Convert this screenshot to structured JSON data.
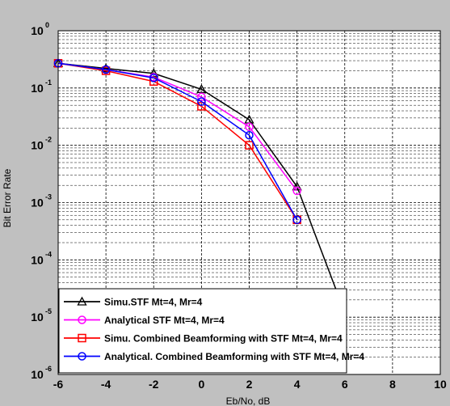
{
  "chart_data": {
    "type": "line",
    "title": "",
    "xlabel": "Eb/No, dB",
    "ylabel": "Bit Error Rate",
    "xlim": [
      -6,
      10
    ],
    "ylim": [
      1e-06,
      1
    ],
    "yscale": "log",
    "grid": true,
    "minor_grid": true,
    "legend_position": "bottom-left",
    "x_ticks": [
      "-6",
      "-4",
      "-2",
      "0",
      "2",
      "4",
      "6",
      "8",
      "10"
    ],
    "y_ticks": [
      {
        "base": "10",
        "exp": "0"
      },
      {
        "base": "10",
        "exp": "-1"
      },
      {
        "base": "10",
        "exp": "-2"
      },
      {
        "base": "10",
        "exp": "-3"
      },
      {
        "base": "10",
        "exp": "-4"
      },
      {
        "base": "10",
        "exp": "-5"
      },
      {
        "base": "10",
        "exp": "-6"
      }
    ],
    "series": [
      {
        "name": "Simu.STF Mt=4, Mr=4",
        "color": "#000000",
        "marker": "triangle",
        "x": [
          -6,
          -4,
          -2,
          0,
          2,
          4,
          6
        ],
        "y": [
          0.27,
          0.22,
          0.18,
          0.095,
          0.028,
          0.0019,
          1.2e-05
        ],
        "markers_on": [
          true,
          true,
          true,
          true,
          true,
          true,
          false
        ]
      },
      {
        "name": "Analytical STF Mt=4, Mr=4",
        "color": "#ff00ff",
        "marker": "circle",
        "x": [
          -6,
          -4,
          -2,
          0,
          2,
          4
        ],
        "y": [
          0.27,
          0.21,
          0.155,
          0.07,
          0.021,
          0.0016
        ]
      },
      {
        "name": "Simu. Combined Beamforming with STF Mt=4, Mr=4",
        "color": "#ff0000",
        "marker": "square",
        "x": [
          -6,
          -4,
          -2,
          0,
          2,
          4
        ],
        "y": [
          0.27,
          0.2,
          0.13,
          0.048,
          0.01,
          0.0005
        ]
      },
      {
        "name": "Analytical. Combined Beamforming with STF Mt=4, Mr=4",
        "color": "#0000ff",
        "marker": "circle",
        "x": [
          -6,
          -4,
          -2,
          0,
          2,
          4
        ],
        "y": [
          0.27,
          0.21,
          0.15,
          0.058,
          0.015,
          0.0005
        ]
      }
    ]
  }
}
